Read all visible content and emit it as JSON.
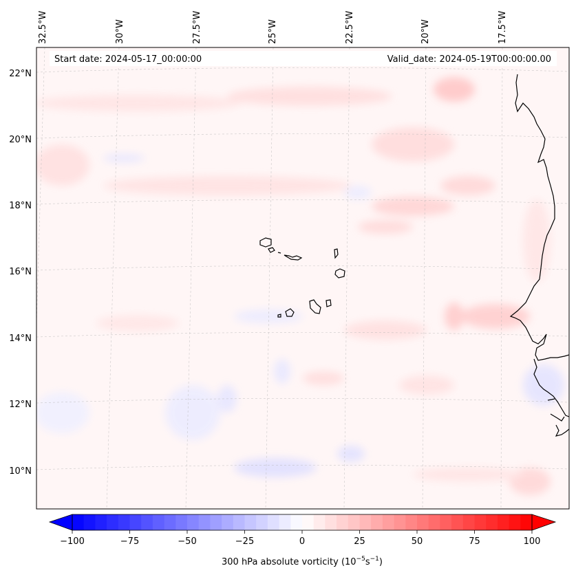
{
  "header": {
    "start_date": "Start date: 2024-05-17_00:00:00",
    "valid_date": "Valid_date: 2024-05-19T00:00:00.00"
  },
  "map": {
    "lon_labels": [
      "32.5°W",
      "30°W",
      "27.5°W",
      "25°W",
      "22.5°W",
      "20°W",
      "17.5°W"
    ],
    "lat_labels": [
      "22°N",
      "20°N",
      "18°N",
      "16°N",
      "14°N",
      "12°N",
      "10°N"
    ],
    "gridlines": true,
    "coastline_color": "#000000",
    "features": [
      "cape-verde-islands",
      "west-africa-coastline"
    ]
  },
  "colorbar": {
    "label_prefix": "300 hPa absolute vorticity (10",
    "label_exp1": "−5",
    "label_mid": "s",
    "label_exp2": "−1",
    "label_suffix": ")",
    "ticks": [
      "−100",
      "−75",
      "−50",
      "−25",
      "0",
      "25",
      "50",
      "75",
      "100"
    ],
    "min": -100,
    "max": 100,
    "neg_color": "#0000ff",
    "pos_color": "#ff0000",
    "mid_color": "#ffffff"
  }
}
